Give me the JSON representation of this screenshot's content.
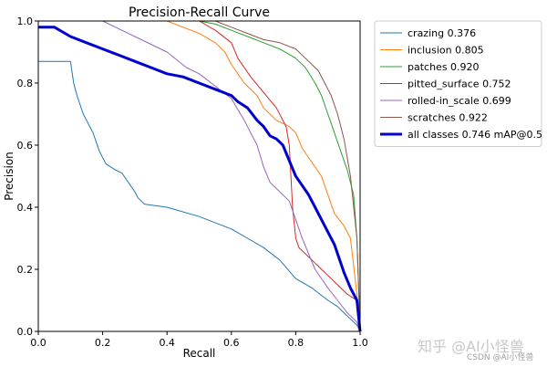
{
  "chart_data": {
    "type": "line",
    "title": "Precision-Recall Curve",
    "xlabel": "Recall",
    "ylabel": "Precision",
    "xlim": [
      0,
      1
    ],
    "ylim": [
      0,
      1
    ],
    "xticks": [
      "0.0",
      "0.2",
      "0.4",
      "0.6",
      "0.8",
      "1.0"
    ],
    "yticks": [
      "0.0",
      "0.2",
      "0.4",
      "0.6",
      "0.8",
      "1.0"
    ],
    "grid": false,
    "legend_position": "outside-right-top",
    "series": [
      {
        "name": "crazing 0.376",
        "color": "#1f77b4",
        "width": 1,
        "x": [
          0.0,
          0.03,
          0.1,
          0.11,
          0.12,
          0.14,
          0.17,
          0.19,
          0.21,
          0.24,
          0.26,
          0.28,
          0.3,
          0.31,
          0.33,
          0.4,
          0.5,
          0.6,
          0.65,
          0.7,
          0.75,
          0.8,
          0.85,
          0.9,
          0.93,
          0.95,
          0.97,
          0.99,
          1.0
        ],
        "y": [
          0.87,
          0.87,
          0.87,
          0.8,
          0.76,
          0.7,
          0.64,
          0.58,
          0.54,
          0.52,
          0.51,
          0.48,
          0.45,
          0.43,
          0.41,
          0.4,
          0.37,
          0.33,
          0.3,
          0.27,
          0.23,
          0.17,
          0.14,
          0.1,
          0.08,
          0.06,
          0.04,
          0.02,
          0.0
        ]
      },
      {
        "name": "inclusion 0.805",
        "color": "#ff7f0e",
        "width": 1,
        "x": [
          0.0,
          0.2,
          0.4,
          0.45,
          0.5,
          0.55,
          0.58,
          0.6,
          0.64,
          0.68,
          0.7,
          0.72,
          0.74,
          0.76,
          0.78,
          0.8,
          0.82,
          0.84,
          0.86,
          0.88,
          0.9,
          0.92,
          0.95,
          0.97,
          0.99,
          1.0
        ],
        "y": [
          1.0,
          1.0,
          1.0,
          0.98,
          0.96,
          0.93,
          0.9,
          0.86,
          0.8,
          0.76,
          0.72,
          0.7,
          0.68,
          0.67,
          0.66,
          0.64,
          0.59,
          0.56,
          0.53,
          0.5,
          0.44,
          0.38,
          0.34,
          0.3,
          0.12,
          0.0
        ]
      },
      {
        "name": "patches 0.920",
        "color": "#2ca02c",
        "width": 1,
        "x": [
          0.0,
          0.5,
          0.55,
          0.6,
          0.65,
          0.7,
          0.75,
          0.8,
          0.83,
          0.86,
          0.88,
          0.9,
          0.92,
          0.94,
          0.96,
          0.98,
          0.99,
          1.0
        ],
        "y": [
          1.0,
          1.0,
          0.99,
          0.97,
          0.95,
          0.93,
          0.91,
          0.88,
          0.85,
          0.8,
          0.76,
          0.7,
          0.64,
          0.58,
          0.52,
          0.44,
          0.3,
          0.0
        ]
      },
      {
        "name": "pitted_surface 0.752",
        "color": "#d62728",
        "width": 1,
        "x": [
          0.0,
          0.4,
          0.5,
          0.55,
          0.6,
          0.62,
          0.66,
          0.7,
          0.74,
          0.77,
          0.78,
          0.79,
          0.8,
          0.81,
          0.82,
          0.84,
          0.86,
          0.88,
          0.9,
          0.93,
          0.96,
          0.99,
          1.0
        ],
        "y": [
          1.0,
          1.0,
          1.0,
          0.97,
          0.93,
          0.88,
          0.82,
          0.77,
          0.72,
          0.66,
          0.6,
          0.4,
          0.3,
          0.27,
          0.26,
          0.24,
          0.22,
          0.2,
          0.18,
          0.15,
          0.12,
          0.1,
          0.0
        ]
      },
      {
        "name": "rolled-in_scale 0.699",
        "color": "#9467bd",
        "width": 1,
        "x": [
          0.0,
          0.2,
          0.3,
          0.4,
          0.46,
          0.5,
          0.55,
          0.6,
          0.64,
          0.68,
          0.7,
          0.72,
          0.75,
          0.78,
          0.8,
          0.82,
          0.84,
          0.86,
          0.88,
          0.9,
          0.93,
          0.96,
          0.99,
          1.0
        ],
        "y": [
          1.0,
          1.0,
          0.95,
          0.9,
          0.85,
          0.83,
          0.79,
          0.75,
          0.68,
          0.6,
          0.53,
          0.48,
          0.45,
          0.42,
          0.36,
          0.3,
          0.25,
          0.2,
          0.17,
          0.14,
          0.1,
          0.06,
          0.03,
          0.0
        ]
      },
      {
        "name": "scratches 0.922",
        "color": "#8c564b",
        "width": 1,
        "x": [
          0.0,
          0.55,
          0.6,
          0.65,
          0.7,
          0.75,
          0.8,
          0.83,
          0.85,
          0.87,
          0.89,
          0.91,
          0.93,
          0.95,
          0.97,
          0.99,
          1.0
        ],
        "y": [
          1.0,
          1.0,
          0.98,
          0.96,
          0.94,
          0.93,
          0.91,
          0.88,
          0.86,
          0.84,
          0.8,
          0.76,
          0.7,
          0.62,
          0.5,
          0.3,
          0.0
        ]
      },
      {
        "name": "all classes 0.746 mAP@0.5",
        "color": "#0000cc",
        "width": 3,
        "x": [
          0.0,
          0.05,
          0.1,
          0.15,
          0.2,
          0.25,
          0.3,
          0.35,
          0.4,
          0.45,
          0.5,
          0.55,
          0.6,
          0.62,
          0.65,
          0.68,
          0.7,
          0.72,
          0.74,
          0.76,
          0.78,
          0.8,
          0.82,
          0.84,
          0.86,
          0.88,
          0.9,
          0.92,
          0.93,
          0.95,
          0.97,
          0.99,
          1.0
        ],
        "y": [
          0.98,
          0.98,
          0.95,
          0.93,
          0.91,
          0.89,
          0.87,
          0.85,
          0.83,
          0.82,
          0.8,
          0.78,
          0.76,
          0.74,
          0.72,
          0.68,
          0.66,
          0.63,
          0.62,
          0.6,
          0.55,
          0.5,
          0.47,
          0.44,
          0.4,
          0.36,
          0.32,
          0.28,
          0.25,
          0.19,
          0.14,
          0.1,
          0.0
        ]
      }
    ]
  },
  "watermark": {
    "main": "知乎 @AI小怪兽",
    "sub": "CSDN @AI小怪兽"
  }
}
